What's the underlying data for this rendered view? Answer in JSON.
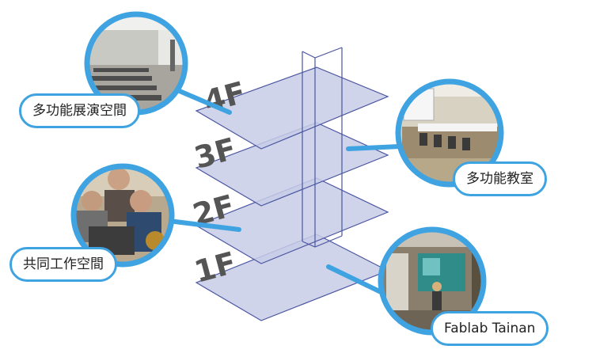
{
  "colors": {
    "accent": "#3ea3e0",
    "floor_fill": "#c7cde6",
    "floor_stroke": "#4a55a0",
    "floor_label": "#555555"
  },
  "floors": [
    {
      "label": "4F",
      "space": "多功能展演空間",
      "photo": "exhibition-hall"
    },
    {
      "label": "3F",
      "space": "多功能教室",
      "photo": "classroom"
    },
    {
      "label": "2F",
      "space": "共同工作空間",
      "photo": "coworking-people-laptop"
    },
    {
      "label": "1F",
      "space": "Fablab Tainan",
      "photo": "fablab-entrance"
    }
  ]
}
